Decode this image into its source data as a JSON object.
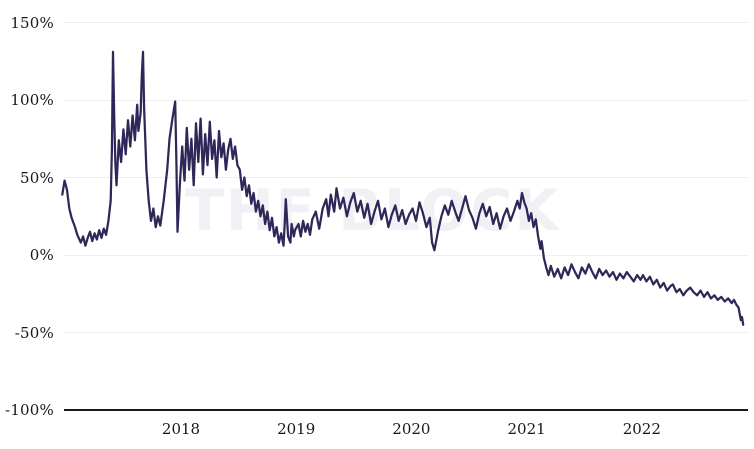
{
  "chart_data": {
    "type": "line",
    "title": "",
    "watermark": "THE BLOCK",
    "legend": false,
    "grid": true,
    "x_axis": {
      "range": [
        2016.97,
        2022.95
      ],
      "ticks": [
        {
          "value": 2018,
          "label": "2018"
        },
        {
          "value": 2019,
          "label": "2019"
        },
        {
          "value": 2020,
          "label": "2020"
        },
        {
          "value": 2021,
          "label": "2021"
        },
        {
          "value": 2022,
          "label": "2022"
        }
      ]
    },
    "y_axis": {
      "unit": "%",
      "range": [
        -100,
        150
      ],
      "ticks": [
        {
          "value": 150,
          "label": "150%"
        },
        {
          "value": 100,
          "label": "100%"
        },
        {
          "value": 50,
          "label": "50%"
        },
        {
          "value": 0,
          "label": "0%"
        },
        {
          "value": -50,
          "label": "-50%"
        },
        {
          "value": -100,
          "label": "-100%"
        }
      ]
    },
    "colors": {
      "line": "#2e2859",
      "grid": "#efefef",
      "axis_line": "#1a1a1a",
      "tick_text": "#17171f",
      "watermark": "#f1f0f4",
      "background": "#ffffff"
    },
    "series": [
      {
        "name": "",
        "points": [
          [
            2016.97,
            39
          ],
          [
            2016.99,
            48
          ],
          [
            2017.01,
            42
          ],
          [
            2017.03,
            30
          ],
          [
            2017.05,
            24
          ],
          [
            2017.08,
            18
          ],
          [
            2017.1,
            13
          ],
          [
            2017.13,
            8
          ],
          [
            2017.15,
            12
          ],
          [
            2017.17,
            6
          ],
          [
            2017.19,
            11
          ],
          [
            2017.21,
            15
          ],
          [
            2017.23,
            9
          ],
          [
            2017.25,
            14
          ],
          [
            2017.27,
            10
          ],
          [
            2017.29,
            16
          ],
          [
            2017.31,
            11
          ],
          [
            2017.33,
            17
          ],
          [
            2017.35,
            13
          ],
          [
            2017.37,
            22
          ],
          [
            2017.39,
            35
          ],
          [
            2017.4,
            68
          ],
          [
            2017.41,
            131
          ],
          [
            2017.42,
            90
          ],
          [
            2017.43,
            60
          ],
          [
            2017.44,
            45
          ],
          [
            2017.46,
            74
          ],
          [
            2017.48,
            60
          ],
          [
            2017.5,
            81
          ],
          [
            2017.52,
            65
          ],
          [
            2017.54,
            87
          ],
          [
            2017.56,
            70
          ],
          [
            2017.58,
            90
          ],
          [
            2017.6,
            74
          ],
          [
            2017.62,
            97
          ],
          [
            2017.63,
            80
          ],
          [
            2017.65,
            92
          ],
          [
            2017.66,
            116
          ],
          [
            2017.67,
            131
          ],
          [
            2017.68,
            95
          ],
          [
            2017.7,
            55
          ],
          [
            2017.72,
            35
          ],
          [
            2017.74,
            22
          ],
          [
            2017.76,
            30
          ],
          [
            2017.78,
            18
          ],
          [
            2017.8,
            25
          ],
          [
            2017.82,
            19
          ],
          [
            2017.85,
            35
          ],
          [
            2017.88,
            55
          ],
          [
            2017.9,
            75
          ],
          [
            2017.93,
            90
          ],
          [
            2017.95,
            99
          ],
          [
            2017.96,
            60
          ],
          [
            2017.97,
            15
          ],
          [
            2017.99,
            45
          ],
          [
            2018.01,
            70
          ],
          [
            2018.03,
            48
          ],
          [
            2018.05,
            82
          ],
          [
            2018.07,
            55
          ],
          [
            2018.09,
            75
          ],
          [
            2018.11,
            45
          ],
          [
            2018.13,
            85
          ],
          [
            2018.15,
            60
          ],
          [
            2018.17,
            88
          ],
          [
            2018.19,
            52
          ],
          [
            2018.21,
            78
          ],
          [
            2018.23,
            58
          ],
          [
            2018.25,
            86
          ],
          [
            2018.27,
            62
          ],
          [
            2018.29,
            74
          ],
          [
            2018.31,
            50
          ],
          [
            2018.33,
            80
          ],
          [
            2018.35,
            63
          ],
          [
            2018.37,
            72
          ],
          [
            2018.39,
            55
          ],
          [
            2018.41,
            68
          ],
          [
            2018.43,
            75
          ],
          [
            2018.45,
            62
          ],
          [
            2018.47,
            70
          ],
          [
            2018.49,
            58
          ],
          [
            2018.51,
            55
          ],
          [
            2018.53,
            42
          ],
          [
            2018.55,
            50
          ],
          [
            2018.57,
            38
          ],
          [
            2018.59,
            45
          ],
          [
            2018.61,
            33
          ],
          [
            2018.63,
            40
          ],
          [
            2018.65,
            28
          ],
          [
            2018.67,
            35
          ],
          [
            2018.69,
            25
          ],
          [
            2018.71,
            32
          ],
          [
            2018.73,
            20
          ],
          [
            2018.75,
            28
          ],
          [
            2018.77,
            16
          ],
          [
            2018.79,
            24
          ],
          [
            2018.81,
            12
          ],
          [
            2018.83,
            18
          ],
          [
            2018.85,
            8
          ],
          [
            2018.87,
            14
          ],
          [
            2018.89,
            6
          ],
          [
            2018.9,
            20
          ],
          [
            2018.91,
            36
          ],
          [
            2018.93,
            12
          ],
          [
            2018.95,
            8
          ],
          [
            2018.96,
            20
          ],
          [
            2018.98,
            12
          ],
          [
            2018.99,
            16
          ],
          [
            2019.02,
            20
          ],
          [
            2019.04,
            12
          ],
          [
            2019.06,
            22
          ],
          [
            2019.08,
            15
          ],
          [
            2019.1,
            20
          ],
          [
            2019.12,
            13
          ],
          [
            2019.14,
            23
          ],
          [
            2019.17,
            28
          ],
          [
            2019.2,
            17
          ],
          [
            2019.23,
            30
          ],
          [
            2019.26,
            36
          ],
          [
            2019.28,
            25
          ],
          [
            2019.3,
            39
          ],
          [
            2019.33,
            28
          ],
          [
            2019.35,
            43
          ],
          [
            2019.38,
            30
          ],
          [
            2019.41,
            37
          ],
          [
            2019.44,
            25
          ],
          [
            2019.47,
            34
          ],
          [
            2019.5,
            40
          ],
          [
            2019.53,
            28
          ],
          [
            2019.56,
            35
          ],
          [
            2019.59,
            24
          ],
          [
            2019.62,
            33
          ],
          [
            2019.65,
            20
          ],
          [
            2019.68,
            28
          ],
          [
            2019.71,
            35
          ],
          [
            2019.74,
            23
          ],
          [
            2019.77,
            30
          ],
          [
            2019.8,
            18
          ],
          [
            2019.83,
            26
          ],
          [
            2019.86,
            32
          ],
          [
            2019.89,
            22
          ],
          [
            2019.92,
            29
          ],
          [
            2019.95,
            20
          ],
          [
            2019.98,
            26
          ],
          [
            2020.01,
            30
          ],
          [
            2020.04,
            22
          ],
          [
            2020.07,
            34
          ],
          [
            2020.1,
            27
          ],
          [
            2020.13,
            18
          ],
          [
            2020.16,
            24
          ],
          [
            2020.18,
            8
          ],
          [
            2020.2,
            3
          ],
          [
            2020.23,
            15
          ],
          [
            2020.26,
            25
          ],
          [
            2020.29,
            32
          ],
          [
            2020.32,
            26
          ],
          [
            2020.35,
            35
          ],
          [
            2020.38,
            28
          ],
          [
            2020.41,
            22
          ],
          [
            2020.44,
            30
          ],
          [
            2020.47,
            38
          ],
          [
            2020.5,
            29
          ],
          [
            2020.53,
            24
          ],
          [
            2020.56,
            17
          ],
          [
            2020.59,
            27
          ],
          [
            2020.62,
            33
          ],
          [
            2020.65,
            25
          ],
          [
            2020.68,
            31
          ],
          [
            2020.71,
            20
          ],
          [
            2020.74,
            27
          ],
          [
            2020.77,
            17
          ],
          [
            2020.8,
            25
          ],
          [
            2020.83,
            30
          ],
          [
            2020.86,
            22
          ],
          [
            2020.89,
            28
          ],
          [
            2020.92,
            35
          ],
          [
            2020.94,
            30
          ],
          [
            2020.96,
            40
          ],
          [
            2020.98,
            34
          ],
          [
            2021.0,
            30
          ],
          [
            2021.02,
            22
          ],
          [
            2021.04,
            27
          ],
          [
            2021.06,
            18
          ],
          [
            2021.08,
            23
          ],
          [
            2021.1,
            12
          ],
          [
            2021.12,
            4
          ],
          [
            2021.13,
            9
          ],
          [
            2021.15,
            -2
          ],
          [
            2021.17,
            -8
          ],
          [
            2021.19,
            -13
          ],
          [
            2021.21,
            -7
          ],
          [
            2021.24,
            -14
          ],
          [
            2021.27,
            -9
          ],
          [
            2021.3,
            -15
          ],
          [
            2021.33,
            -8
          ],
          [
            2021.36,
            -13
          ],
          [
            2021.39,
            -6
          ],
          [
            2021.42,
            -11
          ],
          [
            2021.45,
            -15
          ],
          [
            2021.48,
            -8
          ],
          [
            2021.51,
            -12
          ],
          [
            2021.54,
            -6
          ],
          [
            2021.57,
            -11
          ],
          [
            2021.6,
            -15
          ],
          [
            2021.63,
            -9
          ],
          [
            2021.66,
            -13
          ],
          [
            2021.69,
            -10
          ],
          [
            2021.72,
            -14
          ],
          [
            2021.75,
            -11
          ],
          [
            2021.78,
            -16
          ],
          [
            2021.81,
            -12
          ],
          [
            2021.84,
            -15
          ],
          [
            2021.87,
            -11
          ],
          [
            2021.9,
            -14
          ],
          [
            2021.93,
            -17
          ],
          [
            2021.96,
            -13
          ],
          [
            2021.99,
            -16
          ],
          [
            2022.01,
            -13
          ],
          [
            2022.04,
            -17
          ],
          [
            2022.07,
            -14
          ],
          [
            2022.1,
            -19
          ],
          [
            2022.13,
            -16
          ],
          [
            2022.16,
            -21
          ],
          [
            2022.19,
            -18
          ],
          [
            2022.22,
            -23
          ],
          [
            2022.25,
            -20
          ],
          [
            2022.27,
            -19
          ],
          [
            2022.3,
            -24
          ],
          [
            2022.33,
            -22
          ],
          [
            2022.36,
            -26
          ],
          [
            2022.39,
            -23
          ],
          [
            2022.42,
            -21
          ],
          [
            2022.45,
            -24
          ],
          [
            2022.48,
            -26
          ],
          [
            2022.51,
            -23
          ],
          [
            2022.54,
            -27
          ],
          [
            2022.57,
            -24
          ],
          [
            2022.6,
            -28
          ],
          [
            2022.63,
            -26
          ],
          [
            2022.66,
            -29
          ],
          [
            2022.69,
            -27
          ],
          [
            2022.72,
            -30
          ],
          [
            2022.75,
            -28
          ],
          [
            2022.78,
            -31
          ],
          [
            2022.8,
            -29
          ],
          [
            2022.82,
            -32
          ],
          [
            2022.84,
            -34
          ],
          [
            2022.85,
            -38
          ],
          [
            2022.86,
            -42
          ],
          [
            2022.87,
            -40
          ],
          [
            2022.88,
            -45
          ]
        ]
      }
    ]
  }
}
